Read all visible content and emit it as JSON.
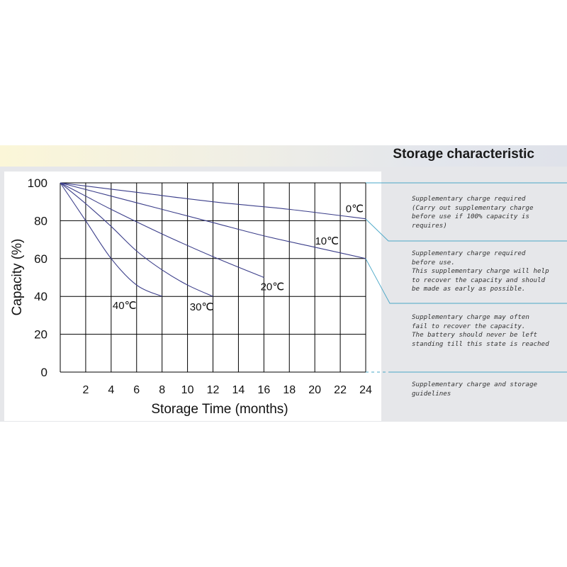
{
  "header": {
    "title": "Storage characteristic"
  },
  "chart_data": {
    "type": "line",
    "xlabel": "Storage Time (months)",
    "ylabel": "Capacity  (%)",
    "xlim": [
      0,
      24
    ],
    "ylim": [
      0,
      100
    ],
    "xticks": [
      "2",
      "4",
      "6",
      "8",
      "10",
      "12",
      "14",
      "16",
      "18",
      "20",
      "22",
      "24"
    ],
    "yticks": [
      "0",
      "20",
      "40",
      "60",
      "80",
      "100"
    ],
    "grid": true,
    "series": [
      {
        "name": "0℃",
        "x": [
          0,
          6,
          12,
          18,
          24
        ],
        "y": [
          100,
          95,
          90,
          86,
          81
        ]
      },
      {
        "name": "10℃",
        "x": [
          0,
          4,
          8,
          12,
          16,
          20,
          24
        ],
        "y": [
          100,
          93,
          86,
          79,
          72,
          66,
          60
        ]
      },
      {
        "name": "20℃",
        "x": [
          0,
          2,
          4,
          8,
          12,
          16
        ],
        "y": [
          100,
          93,
          86,
          73,
          61,
          50
        ]
      },
      {
        "name": "30℃",
        "x": [
          0,
          2,
          4,
          6,
          8,
          10,
          12
        ],
        "y": [
          100,
          89,
          77,
          64,
          54,
          46,
          40
        ]
      },
      {
        "name": "40℃",
        "x": [
          0,
          2,
          4,
          6,
          8
        ],
        "y": [
          100,
          80,
          60,
          46,
          40
        ]
      }
    ]
  },
  "notes": [
    {
      "text": "Supplementary charge required\n(Carry out supplementary charge\nbefore use if 100% capacity is\nrequires)"
    },
    {
      "text": "Supplementary charge required\nbefore use.\nThis supplementary charge will help\nto recover the capacity and should\nbe made  as early as possible."
    },
    {
      "text": "Supplementary charge may often\nfail to recover the capacity.\nThe battery should never be left\nstanding till this state is reached"
    },
    {
      "text": "Supplementary charge and storage\nguidelines"
    }
  ],
  "colors": {
    "curve": "#3b3e8a",
    "grid": "#000000",
    "guide": "#4aa7c7"
  }
}
